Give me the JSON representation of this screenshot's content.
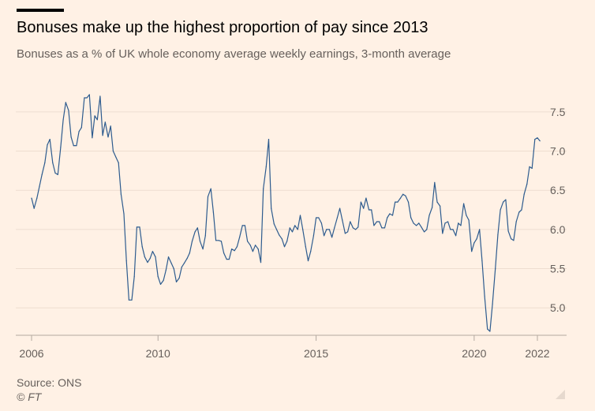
{
  "header": {
    "title": "Bonuses make up the highest proportion of pay since 2013",
    "subtitle": "Bonuses as a % of UK whole economy average weekly earnings, 3-month average"
  },
  "footer": {
    "source": "Source: ONS",
    "copyright": "© FT"
  },
  "colors": {
    "background": "#FFF1E5",
    "line": "#2D5B8E",
    "grid": "#EEDDD0",
    "text": "#66605C"
  },
  "chart_data": {
    "type": "line",
    "title": "Bonuses make up the highest proportion of pay since 2013",
    "subtitle": "Bonuses as a % of UK whole economy average weekly earnings, 3-month average",
    "xlabel": "",
    "ylabel": "",
    "x_tick_labels": [
      "2006",
      "2010",
      "2015",
      "2020",
      "2022"
    ],
    "x_ticks": [
      2006,
      2010,
      2015,
      2020,
      2022
    ],
    "y_tick_labels": [
      "5.0",
      "5.5",
      "6.0",
      "6.5",
      "7.0",
      "7.5"
    ],
    "y_ticks": [
      5.0,
      5.5,
      6.0,
      6.5,
      7.0,
      7.5
    ],
    "xlim": [
      2006.0,
      2022.1
    ],
    "ylim": [
      4.65,
      7.7
    ],
    "grid": true,
    "legend": "none",
    "series": [
      {
        "name": "",
        "points": [
          [
            2006.0,
            6.4
          ],
          [
            2006.08,
            6.27
          ],
          [
            2006.17,
            6.4
          ],
          [
            2006.25,
            6.55
          ],
          [
            2006.33,
            6.7
          ],
          [
            2006.42,
            6.85
          ],
          [
            2006.5,
            7.08
          ],
          [
            2006.58,
            7.15
          ],
          [
            2006.67,
            6.85
          ],
          [
            2006.75,
            6.72
          ],
          [
            2006.83,
            6.7
          ],
          [
            2006.92,
            7.05
          ],
          [
            2007.0,
            7.4
          ],
          [
            2007.08,
            7.62
          ],
          [
            2007.17,
            7.52
          ],
          [
            2007.25,
            7.18
          ],
          [
            2007.33,
            7.07
          ],
          [
            2007.42,
            7.07
          ],
          [
            2007.5,
            7.25
          ],
          [
            2007.58,
            7.3
          ],
          [
            2007.67,
            7.68
          ],
          [
            2007.75,
            7.68
          ],
          [
            2007.83,
            7.72
          ],
          [
            2007.92,
            7.17
          ],
          [
            2008.0,
            7.45
          ],
          [
            2008.08,
            7.4
          ],
          [
            2008.17,
            7.7
          ],
          [
            2008.25,
            7.2
          ],
          [
            2008.33,
            7.37
          ],
          [
            2008.42,
            7.18
          ],
          [
            2008.5,
            7.32
          ],
          [
            2008.58,
            7.0
          ],
          [
            2008.67,
            6.92
          ],
          [
            2008.75,
            6.85
          ],
          [
            2008.83,
            6.45
          ],
          [
            2008.92,
            6.2
          ],
          [
            2009.0,
            5.6
          ],
          [
            2009.08,
            5.1
          ],
          [
            2009.17,
            5.1
          ],
          [
            2009.25,
            5.4
          ],
          [
            2009.33,
            6.03
          ],
          [
            2009.42,
            6.03
          ],
          [
            2009.5,
            5.78
          ],
          [
            2009.58,
            5.65
          ],
          [
            2009.67,
            5.58
          ],
          [
            2009.75,
            5.63
          ],
          [
            2009.83,
            5.72
          ],
          [
            2009.92,
            5.65
          ],
          [
            2010.0,
            5.4
          ],
          [
            2010.08,
            5.3
          ],
          [
            2010.17,
            5.35
          ],
          [
            2010.25,
            5.48
          ],
          [
            2010.33,
            5.65
          ],
          [
            2010.42,
            5.57
          ],
          [
            2010.5,
            5.5
          ],
          [
            2010.58,
            5.33
          ],
          [
            2010.67,
            5.38
          ],
          [
            2010.75,
            5.52
          ],
          [
            2010.83,
            5.57
          ],
          [
            2010.92,
            5.63
          ],
          [
            2011.0,
            5.7
          ],
          [
            2011.08,
            5.85
          ],
          [
            2011.17,
            5.97
          ],
          [
            2011.25,
            6.02
          ],
          [
            2011.33,
            5.85
          ],
          [
            2011.42,
            5.75
          ],
          [
            2011.5,
            5.92
          ],
          [
            2011.58,
            6.42
          ],
          [
            2011.67,
            6.52
          ],
          [
            2011.75,
            6.22
          ],
          [
            2011.83,
            5.86
          ],
          [
            2011.92,
            5.86
          ],
          [
            2012.0,
            5.85
          ],
          [
            2012.08,
            5.7
          ],
          [
            2012.17,
            5.62
          ],
          [
            2012.25,
            5.62
          ],
          [
            2012.33,
            5.75
          ],
          [
            2012.42,
            5.73
          ],
          [
            2012.5,
            5.78
          ],
          [
            2012.58,
            5.9
          ],
          [
            2012.67,
            6.05
          ],
          [
            2012.75,
            6.05
          ],
          [
            2012.83,
            5.85
          ],
          [
            2012.92,
            5.8
          ],
          [
            2013.0,
            5.72
          ],
          [
            2013.08,
            5.8
          ],
          [
            2013.17,
            5.75
          ],
          [
            2013.25,
            5.58
          ],
          [
            2013.33,
            6.52
          ],
          [
            2013.42,
            6.8
          ],
          [
            2013.5,
            7.15
          ],
          [
            2013.58,
            6.27
          ],
          [
            2013.67,
            6.07
          ],
          [
            2013.75,
            6.0
          ],
          [
            2013.83,
            5.93
          ],
          [
            2013.92,
            5.88
          ],
          [
            2014.0,
            5.78
          ],
          [
            2014.08,
            5.85
          ],
          [
            2014.17,
            6.02
          ],
          [
            2014.25,
            5.97
          ],
          [
            2014.33,
            6.05
          ],
          [
            2014.42,
            6.0
          ],
          [
            2014.5,
            6.18
          ],
          [
            2014.58,
            6.0
          ],
          [
            2014.67,
            5.78
          ],
          [
            2014.75,
            5.6
          ],
          [
            2014.83,
            5.72
          ],
          [
            2014.92,
            5.92
          ],
          [
            2015.0,
            6.15
          ],
          [
            2015.08,
            6.15
          ],
          [
            2015.17,
            6.08
          ],
          [
            2015.25,
            5.92
          ],
          [
            2015.33,
            6.0
          ],
          [
            2015.42,
            6.0
          ],
          [
            2015.5,
            5.9
          ],
          [
            2015.58,
            6.02
          ],
          [
            2015.67,
            6.15
          ],
          [
            2015.75,
            6.27
          ],
          [
            2015.83,
            6.12
          ],
          [
            2015.92,
            5.95
          ],
          [
            2016.0,
            5.97
          ],
          [
            2016.08,
            6.1
          ],
          [
            2016.17,
            6.02
          ],
          [
            2016.25,
            6.0
          ],
          [
            2016.33,
            6.03
          ],
          [
            2016.42,
            6.35
          ],
          [
            2016.5,
            6.27
          ],
          [
            2016.58,
            6.4
          ],
          [
            2016.67,
            6.25
          ],
          [
            2016.75,
            6.25
          ],
          [
            2016.83,
            6.05
          ],
          [
            2016.92,
            6.1
          ],
          [
            2017.0,
            6.1
          ],
          [
            2017.08,
            6.02
          ],
          [
            2017.17,
            6.02
          ],
          [
            2017.25,
            6.15
          ],
          [
            2017.33,
            6.2
          ],
          [
            2017.42,
            6.18
          ],
          [
            2017.5,
            6.35
          ],
          [
            2017.58,
            6.35
          ],
          [
            2017.67,
            6.4
          ],
          [
            2017.75,
            6.45
          ],
          [
            2017.83,
            6.43
          ],
          [
            2017.92,
            6.35
          ],
          [
            2018.0,
            6.15
          ],
          [
            2018.08,
            6.08
          ],
          [
            2018.17,
            6.05
          ],
          [
            2018.25,
            6.08
          ],
          [
            2018.33,
            6.03
          ],
          [
            2018.42,
            5.97
          ],
          [
            2018.5,
            6.0
          ],
          [
            2018.58,
            6.18
          ],
          [
            2018.67,
            6.28
          ],
          [
            2018.75,
            6.6
          ],
          [
            2018.83,
            6.35
          ],
          [
            2018.92,
            6.3
          ],
          [
            2019.0,
            5.95
          ],
          [
            2019.08,
            6.08
          ],
          [
            2019.17,
            6.1
          ],
          [
            2019.25,
            6.0
          ],
          [
            2019.33,
            6.0
          ],
          [
            2019.42,
            5.92
          ],
          [
            2019.5,
            6.08
          ],
          [
            2019.58,
            6.05
          ],
          [
            2019.67,
            6.33
          ],
          [
            2019.75,
            6.18
          ],
          [
            2019.83,
            6.12
          ],
          [
            2019.92,
            5.72
          ],
          [
            2020.0,
            5.83
          ],
          [
            2020.08,
            5.88
          ],
          [
            2020.17,
            6.0
          ],
          [
            2020.25,
            5.6
          ],
          [
            2020.33,
            5.15
          ],
          [
            2020.42,
            4.73
          ],
          [
            2020.5,
            4.7
          ],
          [
            2020.58,
            5.05
          ],
          [
            2020.67,
            5.5
          ],
          [
            2020.75,
            5.93
          ],
          [
            2020.83,
            6.25
          ],
          [
            2020.92,
            6.35
          ],
          [
            2021.0,
            6.38
          ],
          [
            2021.08,
            5.98
          ],
          [
            2021.17,
            5.88
          ],
          [
            2021.25,
            5.86
          ],
          [
            2021.33,
            6.1
          ],
          [
            2021.42,
            6.22
          ],
          [
            2021.5,
            6.25
          ],
          [
            2021.58,
            6.45
          ],
          [
            2021.67,
            6.58
          ],
          [
            2021.75,
            6.8
          ],
          [
            2021.83,
            6.78
          ],
          [
            2021.92,
            7.15
          ],
          [
            2022.0,
            7.17
          ],
          [
            2022.08,
            7.13
          ]
        ]
      }
    ]
  }
}
